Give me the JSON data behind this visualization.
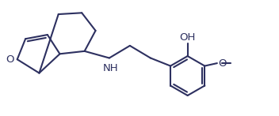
{
  "bg_color": "#ffffff",
  "line_color": "#2d3060",
  "lw": 1.5,
  "fs": 9.5,
  "xlim": [
    0,
    10
  ],
  "ylim": [
    0,
    4.2
  ]
}
